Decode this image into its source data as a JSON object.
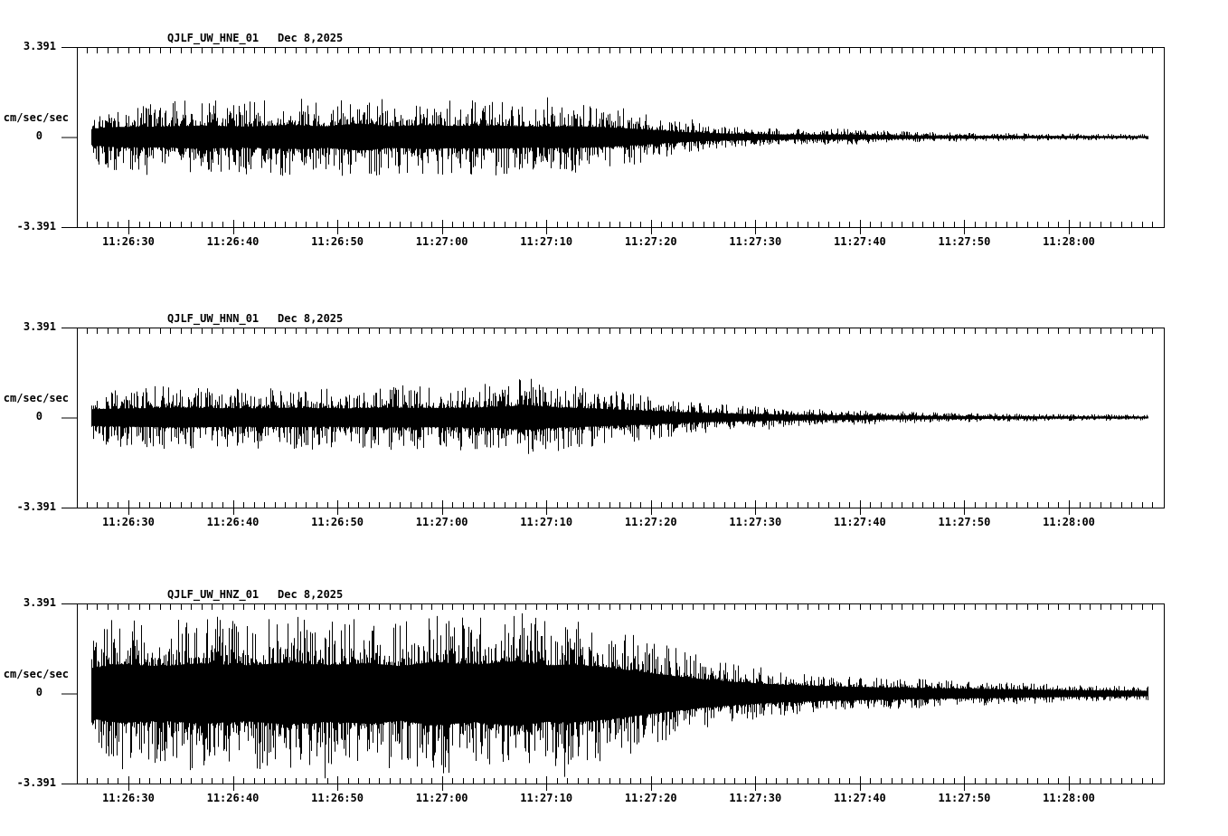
{
  "colors": {
    "background": "#ffffff",
    "foreground": "#000000"
  },
  "chart_data": [
    {
      "type": "line",
      "title": "QJLF_UW_HNE_01",
      "date_label": "Dec 8,2025",
      "ylabel": "cm/sec/sec",
      "ytick_labels": [
        "3.391",
        "0",
        "-3.391"
      ],
      "ylim": [
        -3.391,
        3.391
      ],
      "xtick_labels": [
        "11:26:30",
        "11:26:40",
        "11:26:50",
        "11:27:00",
        "11:27:10",
        "11:27:20",
        "11:27:30",
        "11:27:40",
        "11:27:50",
        "11:28:00"
      ],
      "x_axis_window": [
        "11:26:25",
        "11:28:09"
      ],
      "minor_tick_seconds": 1,
      "major_tick_seconds": 10,
      "grid": false,
      "seed": 7,
      "core": 0.3,
      "amplitude_envelope": [
        [
          1.3,
          1.0
        ],
        [
          3,
          1.25
        ],
        [
          8,
          1.3
        ],
        [
          12,
          1.45
        ],
        [
          16,
          1.3
        ],
        [
          20,
          1.5
        ],
        [
          24,
          1.35
        ],
        [
          27,
          1.7
        ],
        [
          30,
          1.35
        ],
        [
          33,
          1.5
        ],
        [
          36,
          1.4
        ],
        [
          40,
          1.45
        ],
        [
          44,
          1.3
        ],
        [
          48,
          1.35
        ],
        [
          52,
          1.15
        ],
        [
          55,
          0.9
        ],
        [
          58,
          0.62
        ],
        [
          61,
          0.47
        ],
        [
          64,
          0.4
        ],
        [
          67,
          0.34
        ],
        [
          70,
          0.3
        ],
        [
          73,
          0.33
        ],
        [
          76,
          0.26
        ],
        [
          80,
          0.21
        ],
        [
          84,
          0.18
        ],
        [
          88,
          0.16
        ],
        [
          92,
          0.14
        ],
        [
          96,
          0.13
        ],
        [
          100,
          0.12
        ],
        [
          102.5,
          0.11
        ]
      ]
    },
    {
      "type": "line",
      "title": "QJLF_UW_HNN_01",
      "date_label": "Dec 8,2025",
      "ylabel": "cm/sec/sec",
      "ytick_labels": [
        "3.391",
        "0",
        "-3.391"
      ],
      "ylim": [
        -3.391,
        3.391
      ],
      "xtick_labels": [
        "11:26:30",
        "11:26:40",
        "11:26:50",
        "11:27:00",
        "11:27:10",
        "11:27:20",
        "11:27:30",
        "11:27:40",
        "11:27:50",
        "11:28:00"
      ],
      "x_axis_window": [
        "11:26:25",
        "11:28:09"
      ],
      "minor_tick_seconds": 1,
      "major_tick_seconds": 10,
      "grid": false,
      "seed": 13,
      "core": 0.3,
      "amplitude_envelope": [
        [
          1.3,
          1.05
        ],
        [
          5,
          1.15
        ],
        [
          10,
          1.25
        ],
        [
          15,
          1.15
        ],
        [
          20,
          1.2
        ],
        [
          25,
          1.15
        ],
        [
          30,
          1.25
        ],
        [
          35,
          1.2
        ],
        [
          40,
          1.3
        ],
        [
          43,
          1.55
        ],
        [
          46,
          1.25
        ],
        [
          49,
          1.15
        ],
        [
          52,
          1.0
        ],
        [
          55,
          0.85
        ],
        [
          58,
          0.68
        ],
        [
          61,
          0.55
        ],
        [
          64,
          0.45
        ],
        [
          67,
          0.38
        ],
        [
          70,
          0.33
        ],
        [
          74,
          0.28
        ],
        [
          78,
          0.24
        ],
        [
          82,
          0.2
        ],
        [
          86,
          0.17
        ],
        [
          90,
          0.15
        ],
        [
          95,
          0.13
        ],
        [
          100,
          0.12
        ],
        [
          102.5,
          0.11
        ]
      ]
    },
    {
      "type": "line",
      "title": "QJLF_UW_HNZ_01",
      "date_label": "Dec 8,2025",
      "ylabel": "cm/sec/sec",
      "ytick_labels": [
        "3.391",
        "0",
        "-3.391"
      ],
      "ylim": [
        -3.391,
        3.391
      ],
      "xtick_labels": [
        "11:26:30",
        "11:26:40",
        "11:26:50",
        "11:27:00",
        "11:27:10",
        "11:27:20",
        "11:27:30",
        "11:27:40",
        "11:27:50",
        "11:28:00"
      ],
      "x_axis_window": [
        "11:26:25",
        "11:28:09"
      ],
      "minor_tick_seconds": 1,
      "major_tick_seconds": 10,
      "grid": false,
      "seed": 42,
      "core": 0.38,
      "amplitude_envelope": [
        [
          1.3,
          2.5
        ],
        [
          4,
          2.9
        ],
        [
          8,
          2.7
        ],
        [
          12,
          3.0
        ],
        [
          16,
          2.75
        ],
        [
          20,
          3.05
        ],
        [
          24,
          2.8
        ],
        [
          28,
          3.0
        ],
        [
          31,
          2.7
        ],
        [
          34,
          3.15
        ],
        [
          38,
          2.85
        ],
        [
          42,
          3.2
        ],
        [
          45,
          2.8
        ],
        [
          48,
          2.85
        ],
        [
          51,
          2.55
        ],
        [
          54,
          2.15
        ],
        [
          57,
          1.75
        ],
        [
          60,
          1.4
        ],
        [
          63,
          1.15
        ],
        [
          66,
          0.95
        ],
        [
          69,
          0.82
        ],
        [
          72,
          0.72
        ],
        [
          76,
          0.63
        ],
        [
          80,
          0.56
        ],
        [
          84,
          0.5
        ],
        [
          88,
          0.44
        ],
        [
          92,
          0.38
        ],
        [
          96,
          0.33
        ],
        [
          100,
          0.29
        ],
        [
          102.5,
          0.27
        ]
      ]
    }
  ]
}
